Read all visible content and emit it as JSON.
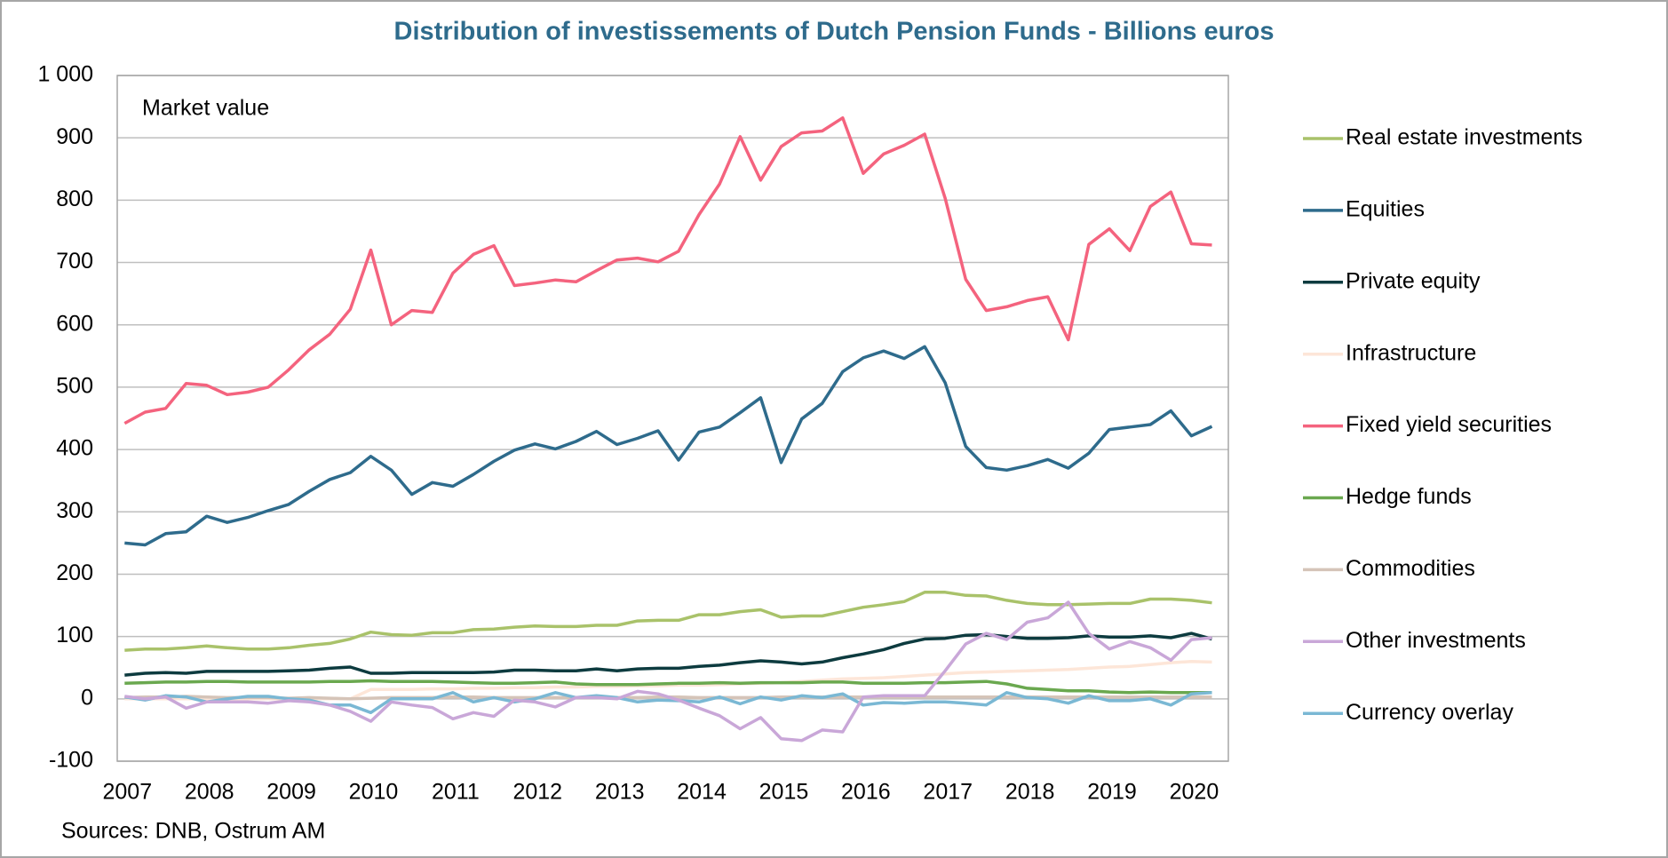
{
  "chart_data": {
    "type": "line",
    "title": "Distribution of investissements of Dutch Pension Funds - Billions euros",
    "annotation": "Market value",
    "source": "Sources: DNB, Ostrum AM",
    "x": [
      2007,
      2007.25,
      2007.5,
      2007.75,
      2008,
      2008.25,
      2008.5,
      2008.75,
      2009,
      2009.25,
      2009.5,
      2009.75,
      2010,
      2010.25,
      2010.5,
      2010.75,
      2011,
      2011.25,
      2011.5,
      2011.75,
      2012,
      2012.25,
      2012.5,
      2012.75,
      2013,
      2013.25,
      2013.5,
      2013.75,
      2014,
      2014.25,
      2014.5,
      2014.75,
      2015,
      2015.25,
      2015.5,
      2015.75,
      2016,
      2016.25,
      2016.5,
      2016.75,
      2017,
      2017.25,
      2017.5,
      2017.75,
      2018,
      2018.25,
      2018.5,
      2018.75,
      2019,
      2019.25,
      2019.5,
      2019.75,
      2020,
      2020.25
    ],
    "xlim": [
      2006.91,
      2020.45
    ],
    "xticks": [
      2007,
      2008,
      2009,
      2010,
      2011,
      2012,
      2013,
      2014,
      2015,
      2016,
      2017,
      2018,
      2019,
      2020
    ],
    "ylim": [
      -100,
      1000
    ],
    "yticks": [
      -100,
      0,
      100,
      200,
      300,
      400,
      500,
      600,
      700,
      800,
      900,
      {
        "value": 1000,
        "label": "1 000"
      }
    ],
    "grid": true,
    "legend": "right",
    "series": [
      {
        "name": "Real estate investments",
        "color": "#a9c26a",
        "values": [
          78,
          80,
          80,
          82,
          85,
          82,
          80,
          80,
          82,
          86,
          89,
          96,
          107,
          103,
          102,
          106,
          106,
          111,
          112,
          115,
          117,
          116,
          116,
          118,
          118,
          125,
          126,
          126,
          135,
          135,
          140,
          143,
          131,
          133,
          133,
          140,
          147,
          151,
          156,
          171,
          171,
          166,
          165,
          158,
          153,
          151,
          151,
          152,
          153,
          153,
          160,
          160,
          158,
          154
        ]
      },
      {
        "name": "Equities",
        "color": "#2e6b8c",
        "values": [
          250,
          247,
          265,
          268,
          293,
          283,
          291,
          302,
          312,
          333,
          352,
          363,
          389,
          367,
          328,
          347,
          341,
          360,
          381,
          399,
          409,
          401,
          413,
          429,
          408,
          418,
          430,
          383,
          428,
          436,
          459,
          483,
          379,
          449,
          474,
          525,
          547,
          558,
          546,
          565,
          507,
          405,
          371,
          367,
          374,
          384,
          370,
          394,
          432,
          436,
          440,
          462,
          422,
          437
        ]
      },
      {
        "name": "Private equity",
        "color": "#0d3b3f",
        "values": [
          38,
          41,
          42,
          41,
          44,
          44,
          44,
          44,
          45,
          46,
          49,
          51,
          41,
          41,
          42,
          42,
          42,
          42,
          43,
          46,
          46,
          45,
          45,
          48,
          45,
          48,
          49,
          49,
          52,
          54,
          58,
          61,
          59,
          56,
          59,
          66,
          72,
          79,
          89,
          96,
          97,
          102,
          103,
          100,
          97,
          97,
          98,
          101,
          99,
          99,
          101,
          98,
          105,
          96
        ]
      },
      {
        "name": "Infrastructure",
        "color": "#fde6d8",
        "values": [
          0,
          0,
          0,
          0,
          0,
          0,
          0,
          0,
          0,
          0,
          0,
          0,
          15,
          15,
          15,
          16,
          16,
          17,
          17,
          18,
          18,
          19,
          19,
          20,
          20,
          21,
          21,
          22,
          22,
          23,
          24,
          25,
          26,
          28,
          30,
          32,
          33,
          34,
          36,
          38,
          40,
          42,
          43,
          44,
          45,
          46,
          47,
          49,
          51,
          52,
          55,
          58,
          60,
          59
        ]
      },
      {
        "name": "Fixed yield securities",
        "color": "#f4637e",
        "values": [
          442,
          460,
          466,
          506,
          503,
          488,
          492,
          500,
          528,
          560,
          585,
          625,
          720,
          600,
          623,
          620,
          683,
          713,
          727,
          663,
          667,
          672,
          669,
          687,
          704,
          707,
          701,
          718,
          777,
          826,
          902,
          832,
          886,
          908,
          911,
          932,
          843,
          874,
          888,
          906,
          803,
          673,
          623,
          629,
          639,
          645,
          576,
          729,
          754,
          719,
          790,
          813,
          730,
          728
        ]
      },
      {
        "name": "Hedge funds",
        "color": "#6aa84f",
        "values": [
          25,
          26,
          27,
          27,
          28,
          28,
          27,
          27,
          27,
          27,
          28,
          28,
          29,
          28,
          28,
          28,
          27,
          26,
          25,
          25,
          26,
          27,
          24,
          23,
          23,
          23,
          24,
          25,
          25,
          26,
          25,
          26,
          26,
          26,
          27,
          27,
          25,
          25,
          25,
          26,
          26,
          27,
          28,
          24,
          17,
          15,
          13,
          13,
          11,
          10,
          11,
          10,
          10,
          10
        ]
      },
      {
        "name": "Commodities",
        "color": "#d5c4b8",
        "values": [
          2,
          3,
          3,
          4,
          3,
          2,
          2,
          2,
          1,
          2,
          1,
          0,
          1,
          2,
          2,
          2,
          3,
          3,
          2,
          2,
          2,
          2,
          2,
          2,
          2,
          2,
          3,
          3,
          2,
          2,
          2,
          2,
          3,
          3,
          3,
          3,
          3,
          3,
          3,
          3,
          3,
          3,
          3,
          3,
          3,
          3,
          3,
          3,
          3,
          3,
          3,
          3,
          3,
          3
        ]
      },
      {
        "name": "Other investments",
        "color": "#c9a7d8",
        "values": [
          4,
          0,
          3,
          -15,
          -5,
          -5,
          -5,
          -7,
          -3,
          -5,
          -10,
          -20,
          -36,
          -5,
          -10,
          -14,
          -32,
          -22,
          -28,
          -2,
          -5,
          -13,
          2,
          2,
          0,
          12,
          8,
          -2,
          -15,
          -27,
          -48,
          -30,
          -64,
          -67,
          -50,
          -53,
          3,
          5,
          5,
          5,
          45,
          88,
          105,
          95,
          123,
          130,
          155,
          105,
          80,
          92,
          82,
          62,
          95,
          98
        ]
      },
      {
        "name": "Currency overlay",
        "color": "#7ab8d4",
        "values": [
          3,
          -2,
          5,
          3,
          -5,
          0,
          4,
          4,
          0,
          -2,
          -10,
          -10,
          -22,
          0,
          0,
          0,
          10,
          -5,
          2,
          -5,
          0,
          10,
          2,
          5,
          2,
          -5,
          -2,
          -3,
          -5,
          3,
          -8,
          3,
          -2,
          5,
          2,
          8,
          -10,
          -6,
          -7,
          -5,
          -5,
          -7,
          -10,
          10,
          2,
          0,
          -7,
          5,
          -3,
          -3,
          0,
          -10,
          8,
          10
        ]
      }
    ]
  }
}
